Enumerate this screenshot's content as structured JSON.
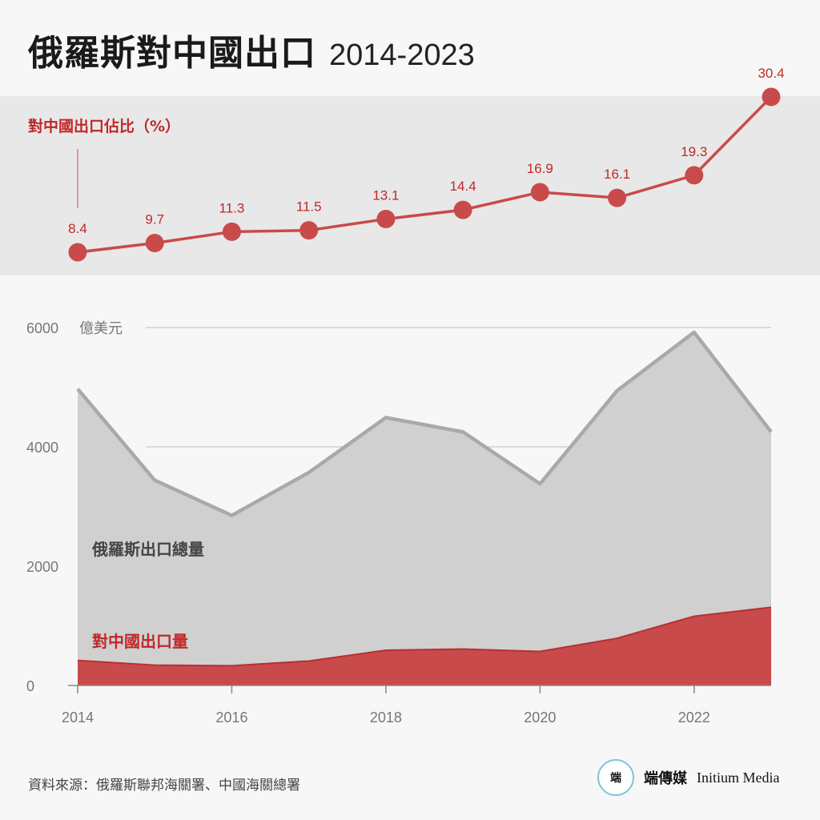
{
  "header": {
    "title": "俄羅斯對中國出口",
    "subtitle": "2014-2023"
  },
  "footer": {
    "source": "資料來源：俄羅斯聯邦海關署、中國海關總署",
    "brand_name": "端傳媒",
    "brand_en": "Initium Media"
  },
  "colors": {
    "red": "#c94a4a",
    "red_text": "#c0282a",
    "gray_area": "#d0d0d0",
    "gray_line": "#a9a9a9",
    "band": "#e8e8e8"
  },
  "chart_data": [
    {
      "type": "line",
      "title": "對中國出口佔比（%）",
      "x": [
        2014,
        2015,
        2016,
        2017,
        2018,
        2019,
        2020,
        2021,
        2022,
        2023
      ],
      "values": [
        8.4,
        9.7,
        11.3,
        11.5,
        13.1,
        14.4,
        16.9,
        16.1,
        19.3,
        30.4
      ],
      "data_labels": [
        "8.4",
        "9.7",
        "11.3",
        "11.5",
        "13.1",
        "14.4",
        "16.9",
        "16.1",
        "19.3",
        "30.4"
      ]
    },
    {
      "type": "area",
      "ylabel": "億美元",
      "ylim": [
        0,
        6000
      ],
      "yticks": [
        "0",
        "2000",
        "4000",
        "6000"
      ],
      "xticks": [
        "2014",
        "2016",
        "2018",
        "2020",
        "2022"
      ],
      "x": [
        2014,
        2015,
        2016,
        2017,
        2018,
        2019,
        2020,
        2021,
        2022,
        2023
      ],
      "grid": true,
      "series": [
        {
          "name": "俄羅斯出口總量",
          "values": [
            4970,
            3440,
            2850,
            3570,
            4490,
            4250,
            3380,
            4940,
            5920,
            4250
          ]
        },
        {
          "name": "對中國出口量",
          "values": [
            420,
            340,
            330,
            410,
            590,
            610,
            570,
            790,
            1160,
            1310
          ]
        }
      ]
    }
  ]
}
